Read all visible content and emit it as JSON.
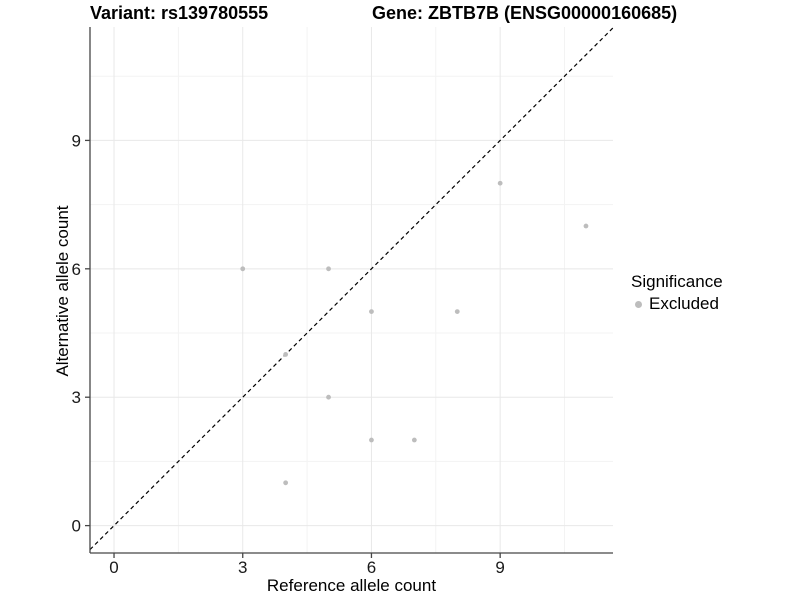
{
  "titles": {
    "variant": "Variant: rs139780555",
    "gene": "Gene: ZBTB7B (ENSG00000160685)"
  },
  "chart_data": {
    "type": "scatter",
    "title": "Variant: rs139780555   Gene: ZBTB7B (ENSG00000160685)",
    "xlabel": "Reference allele count",
    "ylabel": "Alternative allele count",
    "x_ticks": [
      0,
      3,
      6,
      9
    ],
    "y_ticks": [
      0,
      3,
      6,
      9
    ],
    "minor_gridlines": [
      1.5,
      4.5,
      7.5,
      10.5
    ],
    "xlim": [
      -0.56,
      11.63
    ],
    "ylim": [
      -0.64,
      11.65
    ],
    "grid": true,
    "legend_position": "right",
    "identity_line": {
      "equation": "y = x",
      "style": "dashed",
      "color": "#000000"
    },
    "series": [
      {
        "name": "Excluded",
        "color": "#bdbdbd",
        "points": [
          [
            3,
            6
          ],
          [
            5,
            6
          ],
          [
            9,
            8
          ],
          [
            11,
            7
          ],
          [
            6,
            5
          ],
          [
            8,
            5
          ],
          [
            4,
            4
          ],
          [
            5,
            3
          ],
          [
            6,
            2
          ],
          [
            7,
            2
          ],
          [
            4,
            1
          ]
        ]
      }
    ],
    "legend": {
      "title": "Significance",
      "items": [
        {
          "label": "Excluded",
          "color": "#bdbdbd"
        }
      ]
    }
  },
  "style_colors": {
    "axis_line": "#464646",
    "tick_label": "#1a1a1a",
    "major_grid": "#e8e8e8",
    "minor_grid": "#f3f3f3",
    "point": "#bdbdbd"
  }
}
